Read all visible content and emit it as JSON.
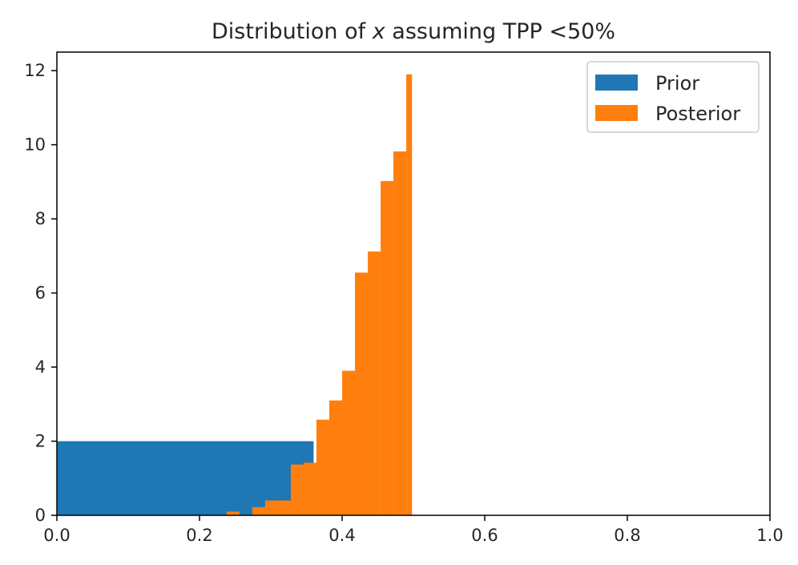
{
  "chart_data": {
    "type": "bar",
    "title_prefix": "Distribution of ",
    "title_var": "x",
    "title_suffix": " assuming TPP <50%",
    "xlabel": "",
    "ylabel": "",
    "xlim": [
      0,
      1
    ],
    "ylim": [
      0,
      12.5
    ],
    "xticks": [
      0,
      0.2,
      0.4,
      0.6,
      0.8,
      1
    ],
    "xtick_labels": [
      "0.0",
      "0.2",
      "0.4",
      "0.6",
      "0.8",
      "1.0"
    ],
    "yticks": [
      0,
      2,
      4,
      6,
      8,
      10,
      12
    ],
    "ytick_labels": [
      "0",
      "2",
      "4",
      "6",
      "8",
      "10",
      "12"
    ],
    "grid": false,
    "legend_position": "top-right",
    "series": [
      {
        "name": "Prior",
        "color": "#1f77b4",
        "bins": [
          [
            0.0,
            0.36,
            2.0
          ]
        ]
      },
      {
        "name": "Posterior",
        "color": "#ff7f0e",
        "bins": [
          [
            0.238,
            0.256,
            0.1
          ],
          [
            0.274,
            0.292,
            0.22
          ],
          [
            0.292,
            0.31,
            0.4
          ],
          [
            0.31,
            0.328,
            0.4
          ],
          [
            0.328,
            0.346,
            1.37
          ],
          [
            0.346,
            0.364,
            1.42
          ],
          [
            0.364,
            0.382,
            2.58
          ],
          [
            0.382,
            0.4,
            3.1
          ],
          [
            0.4,
            0.418,
            3.9
          ],
          [
            0.418,
            0.436,
            6.55
          ],
          [
            0.436,
            0.454,
            7.12
          ],
          [
            0.454,
            0.472,
            9.02
          ],
          [
            0.472,
            0.49,
            9.82
          ],
          [
            0.49,
            0.498,
            11.9
          ]
        ]
      }
    ]
  }
}
